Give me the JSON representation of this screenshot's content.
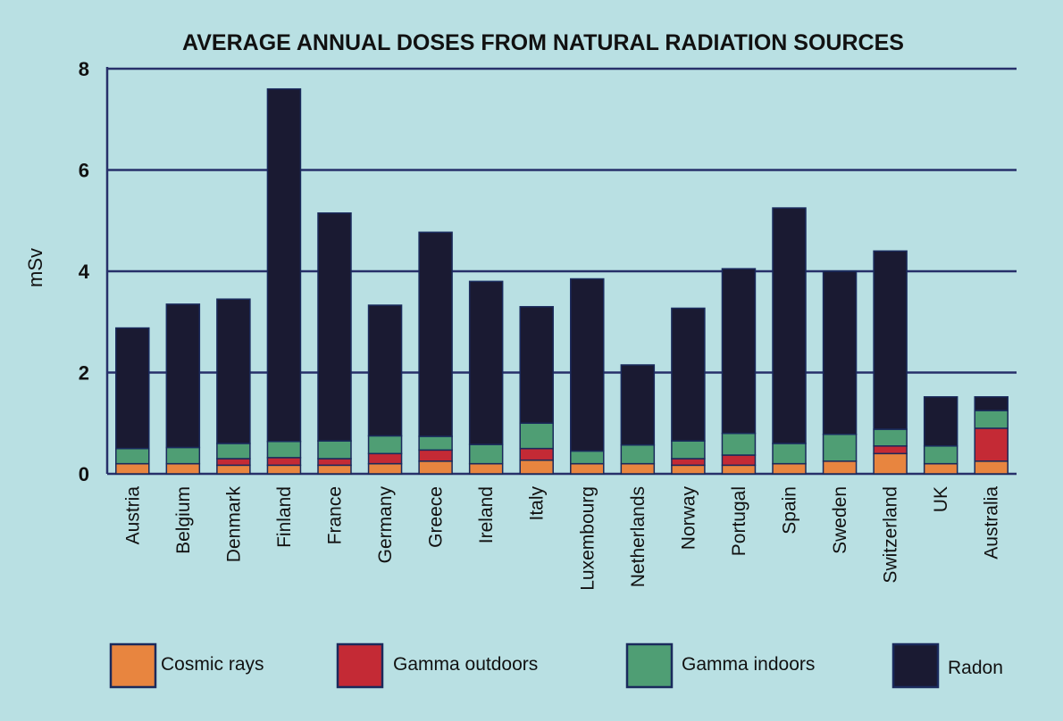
{
  "chart_data": {
    "type": "bar",
    "stacked": true,
    "title": "AVERAGE ANNUAL DOSES FROM NATURAL RADIATION SOURCES",
    "ylabel": "mSv",
    "xlabel": "",
    "ylim": [
      0,
      8
    ],
    "yticks": [
      "0",
      "2",
      "4",
      "6",
      "8"
    ],
    "grid": true,
    "legend_position": "bottom",
    "categories": [
      "Austria",
      "Belgium",
      "Denmark",
      "Finland",
      "France",
      "Germany",
      "Greece",
      "Ireland",
      "Italy",
      "Luxembourg",
      "Netherlands",
      "Norway",
      "Portugal",
      "Spain",
      "Sweden",
      "Switzerland",
      "UK",
      "Australia"
    ],
    "series": [
      {
        "name": "Cosmic rays",
        "color": "#e8853f",
        "values": [
          0.2,
          0.2,
          0.17,
          0.17,
          0.17,
          0.2,
          0.25,
          0.2,
          0.27,
          0.2,
          0.2,
          0.17,
          0.17,
          0.2,
          0.25,
          0.4,
          0.2,
          0.25
        ]
      },
      {
        "name": "Gamma outdoors",
        "color": "#c42a35",
        "values": [
          0.0,
          0.0,
          0.13,
          0.15,
          0.13,
          0.2,
          0.22,
          0.0,
          0.23,
          0.0,
          0.0,
          0.13,
          0.2,
          0.0,
          0.0,
          0.15,
          0.0,
          0.65
        ]
      },
      {
        "name": "Gamma indoors",
        "color": "#4f9e74",
        "values": [
          0.3,
          0.32,
          0.3,
          0.32,
          0.35,
          0.35,
          0.27,
          0.38,
          0.5,
          0.25,
          0.37,
          0.35,
          0.43,
          0.4,
          0.53,
          0.33,
          0.35,
          0.35
        ]
      },
      {
        "name": "Radon",
        "color": "#1a1a32",
        "values": [
          2.38,
          2.83,
          2.85,
          6.96,
          4.5,
          2.58,
          4.03,
          3.22,
          2.3,
          3.4,
          1.58,
          2.62,
          3.25,
          4.65,
          3.22,
          3.52,
          0.97,
          0.27
        ]
      }
    ]
  }
}
